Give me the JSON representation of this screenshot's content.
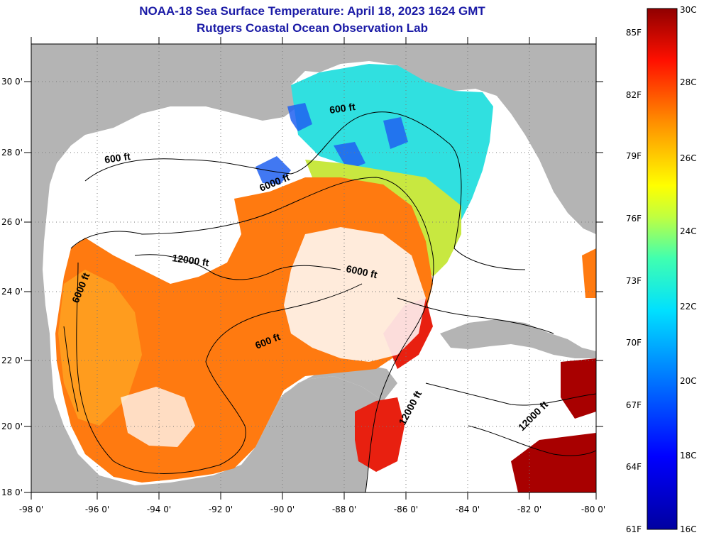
{
  "title": "NOAA-18 Sea Surface Temperature:  April 18, 2023 1624 GMT",
  "subtitle": "Rutgers Coastal Ocean Observation Lab",
  "lon_ticks": [
    "-98 0'",
    "-96 0'",
    "-94 0'",
    "-92 0'",
    "-90 0'",
    "-88 0'",
    "-86 0'",
    "-84 0'",
    "-82 0'",
    "-80 0'"
  ],
  "lat_ticks": [
    "30 0'",
    "28 0'",
    "26 0'",
    "24 0'",
    "22 0'",
    "20 0'",
    "18 0'"
  ],
  "contours": {
    "c1": "600 ft",
    "c2": "600 ft",
    "c3": "6000 ft",
    "c4": "12000 ft",
    "c5": "6000 ft",
    "c6": "6000 ft",
    "c7": "600 ft",
    "c8": "12000 ft",
    "c9": "12000 ft"
  },
  "colorbar": {
    "f_labels": [
      "85F",
      "82F",
      "79F",
      "76F",
      "73F",
      "70F",
      "67F",
      "64F",
      "61F"
    ],
    "c_labels": [
      "30C",
      "28C",
      "26C",
      "24C",
      "22C",
      "20C",
      "18C",
      "16C"
    ]
  },
  "colors": {
    "land": "#b4b4b4",
    "title": "#1a1aa6"
  }
}
